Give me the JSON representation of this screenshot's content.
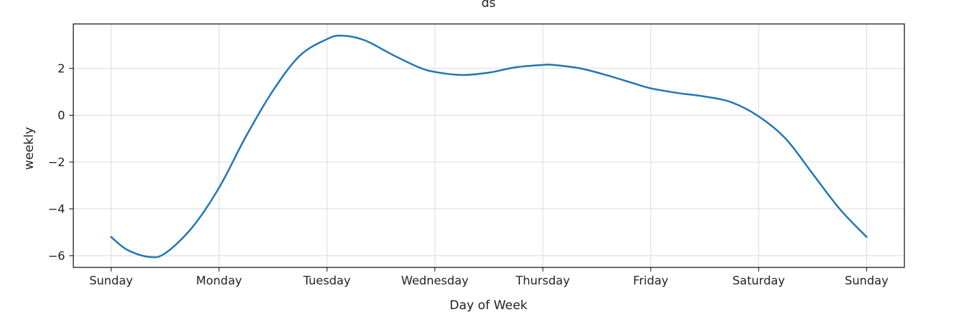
{
  "chart_data": {
    "type": "line",
    "title": "ds",
    "xlabel": "Day of Week",
    "ylabel": "weekly",
    "grid": true,
    "line_color": "#1f77b4",
    "x_ticks": [
      "Sunday",
      "Monday",
      "Tuesday",
      "Wednesday",
      "Thursday",
      "Friday",
      "Saturday",
      "Sunday"
    ],
    "y_ticks": [
      2,
      0,
      -2,
      -4,
      -6
    ],
    "y_tick_labels": [
      "2",
      "0",
      "−2",
      "−4",
      "−6"
    ],
    "xlim": [
      -0.35,
      7.35
    ],
    "ylim": [
      -6.5,
      3.9
    ],
    "series": [
      {
        "x": [
          0,
          0.15,
          0.35,
          0.5,
          0.75,
          1.0,
          1.25,
          1.5,
          1.75,
          2.0,
          2.14,
          2.35,
          2.6,
          2.85,
          3.0,
          3.25,
          3.5,
          3.75,
          4.0,
          4.1,
          4.35,
          4.6,
          4.85,
          5.0,
          5.25,
          5.5,
          5.75,
          6.0,
          6.25,
          6.5,
          6.75,
          7.0
        ],
        "y": [
          -5.2,
          -5.75,
          -6.05,
          -5.9,
          -4.8,
          -3.1,
          -0.9,
          1.05,
          2.55,
          3.25,
          3.4,
          3.2,
          2.6,
          2.05,
          1.85,
          1.72,
          1.82,
          2.05,
          2.15,
          2.15,
          2.0,
          1.7,
          1.35,
          1.15,
          0.95,
          0.8,
          0.55,
          -0.05,
          -1.0,
          -2.5,
          -4.0,
          -5.2
        ]
      }
    ]
  }
}
